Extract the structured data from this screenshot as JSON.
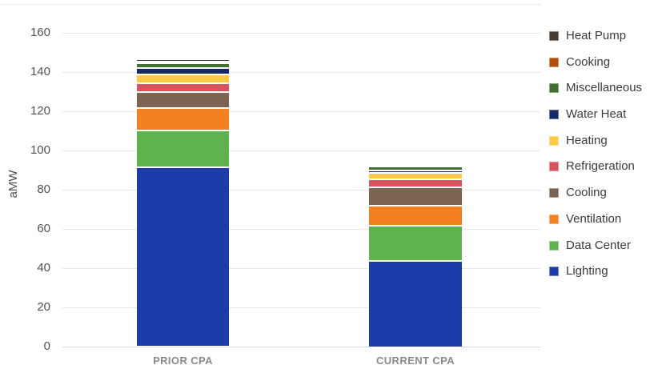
{
  "chart_data": {
    "type": "bar",
    "stacked": true,
    "title": "",
    "xlabel": "",
    "ylabel": "aMW",
    "ylim": [
      0,
      160
    ],
    "y_ticks": [
      0,
      20,
      40,
      60,
      80,
      100,
      120,
      140,
      160
    ],
    "grid": true,
    "legend_position": "right",
    "categories": [
      "PRIOR CPA",
      "CURRENT CPA"
    ],
    "series": [
      {
        "name": "Heat Pump",
        "color": "#4a3b33",
        "values": [
          1.0,
          0.8
        ]
      },
      {
        "name": "Cooking",
        "color": "#b04e10",
        "values": [
          0.7,
          0.6
        ]
      },
      {
        "name": "Miscellaneous",
        "color": "#437030",
        "values": [
          2.8,
          2.0
        ]
      },
      {
        "name": "Water Heat",
        "color": "#14286b",
        "values": [
          3.0,
          1.2
        ]
      },
      {
        "name": "Heating",
        "color": "#fcca46",
        "values": [
          4.8,
          3.4
        ]
      },
      {
        "name": "Refrigeration",
        "color": "#d8535e",
        "values": [
          4.5,
          4.3
        ]
      },
      {
        "name": "Cooling",
        "color": "#7d6351",
        "values": [
          8.0,
          9.3
        ]
      },
      {
        "name": "Ventilation",
        "color": "#f48120",
        "values": [
          11.5,
          10.0
        ]
      },
      {
        "name": "Data Center",
        "color": "#5eb34c",
        "values": [
          18.8,
          18.0
        ]
      },
      {
        "name": "Lighting",
        "color": "#1e3ca9",
        "values": [
          91.4,
          44.0
        ]
      }
    ],
    "totals": [
      146.5,
      93.6
    ]
  }
}
